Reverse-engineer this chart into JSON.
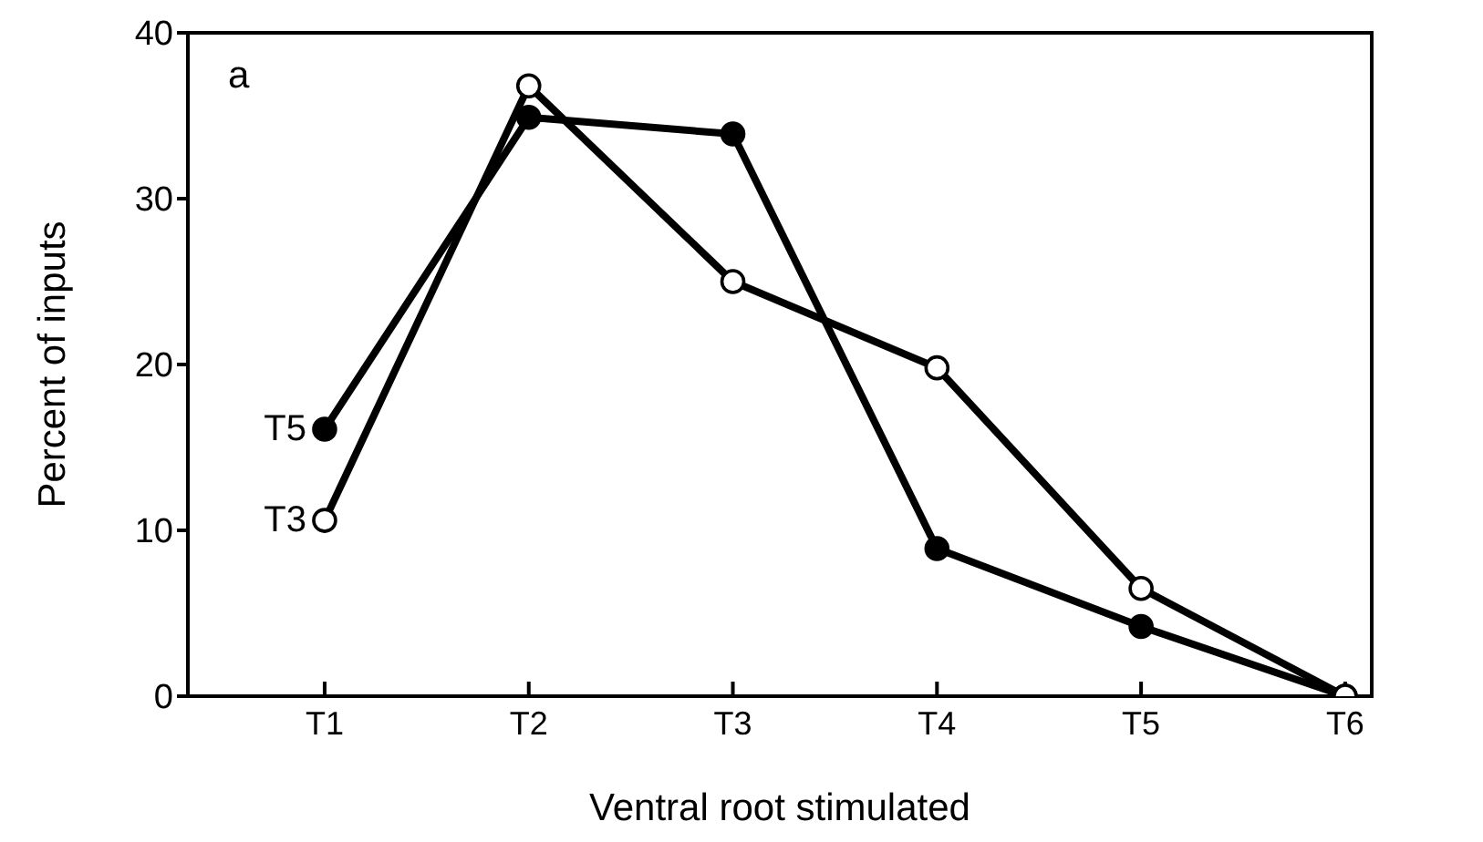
{
  "chart_data": {
    "type": "line",
    "xlabel": "Ventral root stimulated",
    "ylabel": "Percent of inputs",
    "categories": [
      "T1",
      "T2",
      "T3",
      "T4",
      "T5",
      "T6"
    ],
    "series": [
      {
        "name": "T5",
        "color": "#000000",
        "values": [
          16.1,
          34.9,
          33.9,
          8.9,
          4.2,
          0
        ]
      },
      {
        "name": "T3",
        "color": "#000000",
        "values": [
          10.6,
          36.8,
          25,
          19.8,
          6.5,
          0
        ]
      }
    ],
    "ylim": [
      0,
      40
    ],
    "yticks": [
      0,
      10,
      20,
      30,
      40
    ],
    "marker": "circle",
    "line_style": "solid",
    "annotations": [
      "a"
    ]
  }
}
